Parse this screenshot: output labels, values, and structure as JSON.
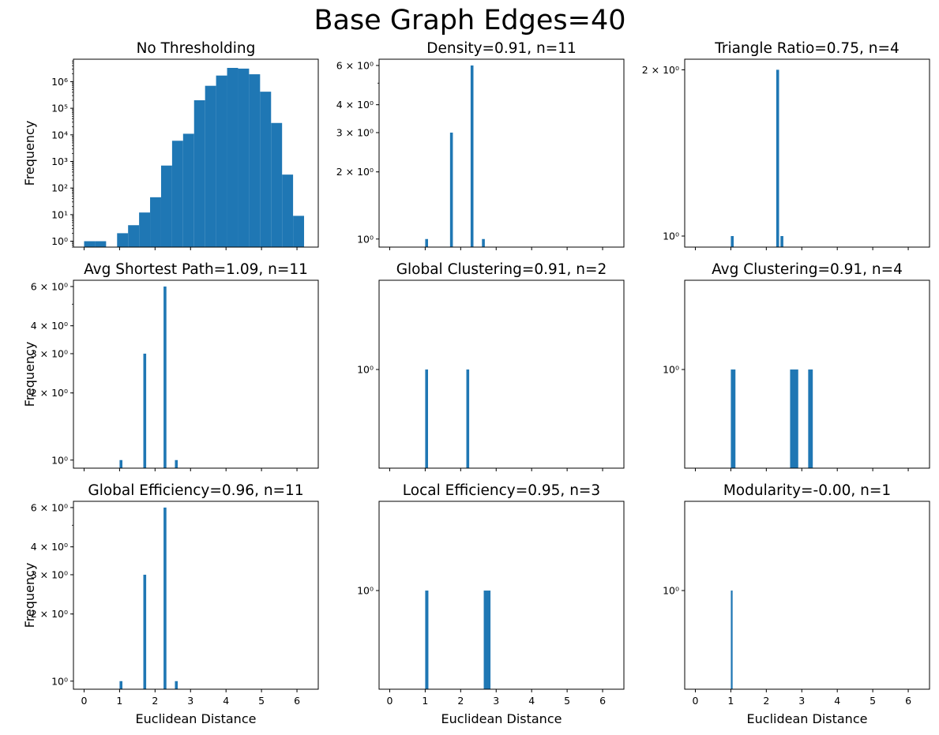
{
  "figure_title": "Base Graph Edges=40",
  "colors": {
    "bar": "#1f77b4",
    "axes": "#000000",
    "background": "#ffffff"
  },
  "chart_data": [
    {
      "type": "bar",
      "title": "No Thresholding",
      "ylabel": "Frequency",
      "xlabel": "",
      "yscale": "log",
      "ylim": [
        0.6,
        7000000
      ],
      "yticks": [
        {
          "v": 1,
          "label": "10⁰"
        },
        {
          "v": 10,
          "label": "10¹"
        },
        {
          "v": 100,
          "label": "10²"
        },
        {
          "v": 1000,
          "label": "10³"
        },
        {
          "v": 10000,
          "label": "10⁴"
        },
        {
          "v": 100000,
          "label": "10⁵"
        },
        {
          "v": 1000000,
          "label": "10⁶"
        }
      ],
      "xlim": [
        -0.3,
        6.6
      ],
      "xticks": [
        0,
        1,
        2,
        3,
        4,
        5,
        6
      ],
      "show_xtick_labels": false,
      "bars": [
        {
          "x0": 0,
          "x1": 0.31,
          "v": 1
        },
        {
          "x0": 0.31,
          "x1": 0.62,
          "v": 1
        },
        {
          "x0": 0.93,
          "x1": 1.24,
          "v": 2
        },
        {
          "x0": 1.24,
          "x1": 1.55,
          "v": 4
        },
        {
          "x0": 1.55,
          "x1": 1.86,
          "v": 12
        },
        {
          "x0": 1.86,
          "x1": 2.17,
          "v": 45
        },
        {
          "x0": 2.17,
          "x1": 2.48,
          "v": 700
        },
        {
          "x0": 2.48,
          "x1": 2.79,
          "v": 6000
        },
        {
          "x0": 2.79,
          "x1": 3.1,
          "v": 11000
        },
        {
          "x0": 3.1,
          "x1": 3.41,
          "v": 200000
        },
        {
          "x0": 3.41,
          "x1": 3.72,
          "v": 700000
        },
        {
          "x0": 3.72,
          "x1": 4.03,
          "v": 1700000
        },
        {
          "x0": 4.03,
          "x1": 4.34,
          "v": 3300000
        },
        {
          "x0": 4.34,
          "x1": 4.65,
          "v": 3100000
        },
        {
          "x0": 4.65,
          "x1": 4.96,
          "v": 1900000
        },
        {
          "x0": 4.96,
          "x1": 5.27,
          "v": 420000
        },
        {
          "x0": 5.27,
          "x1": 5.58,
          "v": 28000
        },
        {
          "x0": 5.58,
          "x1": 5.89,
          "v": 320
        },
        {
          "x0": 5.89,
          "x1": 6.2,
          "v": 9
        }
      ]
    },
    {
      "type": "bar",
      "title": "Density=0.91, n=11",
      "ylabel": "",
      "xlabel": "",
      "yscale": "log",
      "ylim": [
        0.92,
        6.4
      ],
      "yticks": [
        {
          "v": 1,
          "label": "10⁰"
        },
        {
          "v": 2,
          "label": "2 × 10⁰"
        },
        {
          "v": 3,
          "label": "3 × 10⁰"
        },
        {
          "v": 4,
          "label": "4 × 10⁰"
        },
        {
          "v": 6,
          "label": "6 × 10⁰"
        }
      ],
      "xlim": [
        -0.3,
        6.6
      ],
      "xticks": [
        0,
        1,
        2,
        3,
        4,
        5,
        6
      ],
      "show_xtick_labels": false,
      "bars": [
        {
          "x0": 1.0,
          "x1": 1.08,
          "v": 1
        },
        {
          "x0": 1.7,
          "x1": 1.78,
          "v": 3
        },
        {
          "x0": 2.28,
          "x1": 2.36,
          "v": 6
        },
        {
          "x0": 2.6,
          "x1": 2.68,
          "v": 1
        }
      ]
    },
    {
      "type": "bar",
      "title": "Triangle Ratio=0.75, n=4",
      "ylabel": "",
      "xlabel": "",
      "yscale": "log",
      "ylim": [
        0.955,
        2.09
      ],
      "yticks": [
        {
          "v": 1,
          "label": "10⁰"
        },
        {
          "v": 2,
          "label": "2 × 10⁰"
        }
      ],
      "xlim": [
        -0.3,
        6.6
      ],
      "xticks": [
        0,
        1,
        2,
        3,
        4,
        5,
        6
      ],
      "show_xtick_labels": false,
      "bars": [
        {
          "x0": 1.0,
          "x1": 1.08,
          "v": 1
        },
        {
          "x0": 2.28,
          "x1": 2.36,
          "v": 2
        },
        {
          "x0": 2.4,
          "x1": 2.48,
          "v": 1
        }
      ]
    },
    {
      "type": "bar",
      "title": "Avg Shortest Path=1.09, n=11",
      "ylabel": "Frequency",
      "xlabel": "",
      "yscale": "log",
      "ylim": [
        0.92,
        6.4
      ],
      "yticks": [
        {
          "v": 1,
          "label": "10⁰"
        },
        {
          "v": 2,
          "label": "2 × 10⁰"
        },
        {
          "v": 3,
          "label": "3 × 10⁰"
        },
        {
          "v": 4,
          "label": "4 × 10⁰"
        },
        {
          "v": 6,
          "label": "6 × 10⁰"
        }
      ],
      "xlim": [
        -0.3,
        6.6
      ],
      "xticks": [
        0,
        1,
        2,
        3,
        4,
        5,
        6
      ],
      "show_xtick_labels": false,
      "bars": [
        {
          "x0": 1.0,
          "x1": 1.08,
          "v": 1
        },
        {
          "x0": 1.67,
          "x1": 1.75,
          "v": 3
        },
        {
          "x0": 2.24,
          "x1": 2.32,
          "v": 6
        },
        {
          "x0": 2.56,
          "x1": 2.64,
          "v": 1
        }
      ]
    },
    {
      "type": "bar",
      "title": "Global Clustering=0.91, n=2",
      "ylabel": "",
      "xlabel": "",
      "yscale": "log",
      "ylim": [
        0.9,
        1.1
      ],
      "yticks": [
        {
          "v": 1,
          "label": "10⁰"
        }
      ],
      "xlim": [
        -0.3,
        6.6
      ],
      "xticks": [
        0,
        1,
        2,
        3,
        4,
        5,
        6
      ],
      "show_xtick_labels": false,
      "bars": [
        {
          "x0": 1.0,
          "x1": 1.08,
          "v": 1
        },
        {
          "x0": 2.16,
          "x1": 2.24,
          "v": 1
        }
      ]
    },
    {
      "type": "bar",
      "title": "Avg Clustering=0.91, n=4",
      "ylabel": "",
      "xlabel": "",
      "yscale": "log",
      "ylim": [
        0.9,
        1.1
      ],
      "yticks": [
        {
          "v": 1,
          "label": "10⁰"
        }
      ],
      "xlim": [
        -0.3,
        6.6
      ],
      "xticks": [
        0,
        1,
        2,
        3,
        4,
        5,
        6
      ],
      "show_xtick_labels": false,
      "bars": [
        {
          "x0": 1.0,
          "x1": 1.13,
          "v": 1
        },
        {
          "x0": 2.67,
          "x1": 2.9,
          "v": 1
        },
        {
          "x0": 3.18,
          "x1": 3.31,
          "v": 1
        }
      ]
    },
    {
      "type": "bar",
      "title": "Global Efficiency=0.96, n=11",
      "ylabel": "Frequency",
      "xlabel": "Euclidean Distance",
      "yscale": "log",
      "ylim": [
        0.92,
        6.4
      ],
      "yticks": [
        {
          "v": 1,
          "label": "10⁰"
        },
        {
          "v": 2,
          "label": "2 × 10⁰"
        },
        {
          "v": 3,
          "label": "3 × 10⁰"
        },
        {
          "v": 4,
          "label": "4 × 10⁰"
        },
        {
          "v": 6,
          "label": "6 × 10⁰"
        }
      ],
      "xlim": [
        -0.3,
        6.6
      ],
      "xticks": [
        0,
        1,
        2,
        3,
        4,
        5,
        6
      ],
      "show_xtick_labels": true,
      "bars": [
        {
          "x0": 1.0,
          "x1": 1.08,
          "v": 1
        },
        {
          "x0": 1.67,
          "x1": 1.75,
          "v": 3
        },
        {
          "x0": 2.24,
          "x1": 2.32,
          "v": 6
        },
        {
          "x0": 2.56,
          "x1": 2.64,
          "v": 1
        }
      ]
    },
    {
      "type": "bar",
      "title": "Local Efficiency=0.95, n=3",
      "ylabel": "",
      "xlabel": "Euclidean Distance",
      "yscale": "log",
      "ylim": [
        0.9,
        1.1
      ],
      "yticks": [
        {
          "v": 1,
          "label": "10⁰"
        }
      ],
      "xlim": [
        -0.3,
        6.6
      ],
      "xticks": [
        0,
        1,
        2,
        3,
        4,
        5,
        6
      ],
      "show_xtick_labels": true,
      "bars": [
        {
          "x0": 1.0,
          "x1": 1.09,
          "v": 1
        },
        {
          "x0": 2.65,
          "x1": 2.84,
          "v": 1
        }
      ]
    },
    {
      "type": "bar",
      "title": "Modularity=-0.00, n=1",
      "ylabel": "",
      "xlabel": "Euclidean Distance",
      "yscale": "log",
      "ylim": [
        0.9,
        1.1
      ],
      "yticks": [
        {
          "v": 1,
          "label": "10⁰"
        }
      ],
      "xlim": [
        -0.3,
        6.6
      ],
      "xticks": [
        0,
        1,
        2,
        3,
        4,
        5,
        6
      ],
      "show_xtick_labels": true,
      "bars": [
        {
          "x0": 1.0,
          "x1": 1.05,
          "v": 1
        }
      ]
    }
  ]
}
